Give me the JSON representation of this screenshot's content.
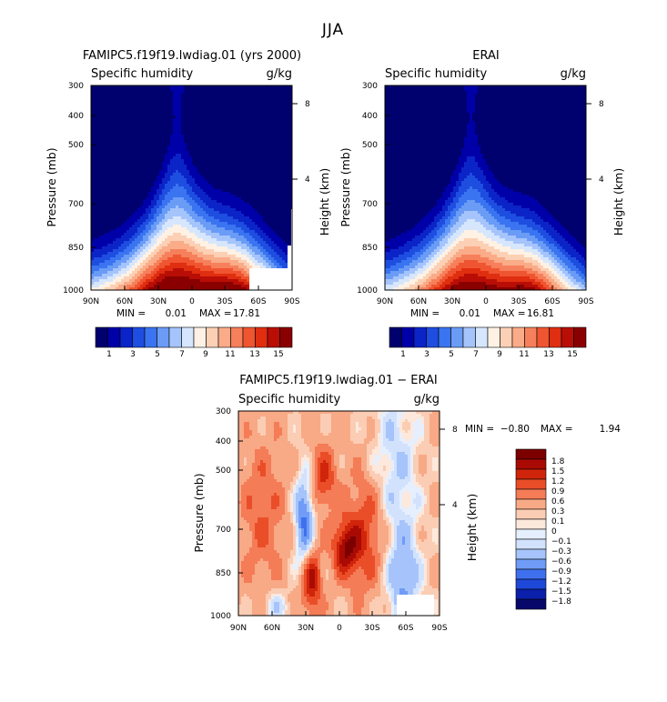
{
  "figure": {
    "suptitle": "JJA",
    "colors": {
      "seq": [
        "#00006e",
        "#0000a8",
        "#0b24c8",
        "#1e4ee0",
        "#3a74f0",
        "#6a9cf6",
        "#a5c4fb",
        "#d6e6fd",
        "#fff1e4",
        "#fcd0b4",
        "#faab88",
        "#f6805b",
        "#ef5530",
        "#df2e10",
        "#b80e06",
        "#8a0000"
      ],
      "div": [
        "#08086a",
        "#0a20aa",
        "#1e48d8",
        "#3e70ee",
        "#709cf7",
        "#a6c4fb",
        "#d2e2fd",
        "#e6effe",
        "#fde8dc",
        "#fbcdb4",
        "#f8a986",
        "#f47c57",
        "#ea4e28",
        "#d0250b",
        "#aa0a04",
        "#7c0000"
      ]
    },
    "panels": [
      {
        "id": "model",
        "title": "FAMIPC5.f19f19.lwdiag.01 (yrs 2000)",
        "left_label": "Specific humidity",
        "right_label": "g/kg",
        "ylabel": "Pressure (mb)",
        "ylabel_right": "Height (km)",
        "yticks": [
          "300",
          "400",
          "500",
          "700",
          "850",
          "1000"
        ],
        "yticks_right": [
          "8",
          "4"
        ],
        "xticks": [
          "90N",
          "60N",
          "30N",
          "0",
          "30S",
          "60S",
          "90S"
        ],
        "stats": {
          "min_label": "MIN =",
          "min": "0.01",
          "max_label": "MAX =",
          "max": "17.81"
        },
        "colorbar_labels": [
          "1",
          "3",
          "5",
          "7",
          "9",
          "11",
          "13",
          "15"
        ]
      },
      {
        "id": "obs",
        "title": "ERAI",
        "left_label": "Specific humidity",
        "right_label": "g/kg",
        "ylabel": "Pressure (mb)",
        "ylabel_right": "Height (km)",
        "yticks": [
          "300",
          "400",
          "500",
          "700",
          "850",
          "1000"
        ],
        "yticks_right": [
          "8",
          "4"
        ],
        "xticks": [
          "90N",
          "60N",
          "30N",
          "0",
          "30S",
          "60S",
          "90S"
        ],
        "stats": {
          "min_label": "MIN =",
          "min": "0.01",
          "max_label": "MAX =",
          "max": "16.81"
        },
        "colorbar_labels": [
          "1",
          "3",
          "5",
          "7",
          "9",
          "11",
          "13",
          "15"
        ]
      },
      {
        "id": "diff",
        "title": "FAMIPC5.f19f19.lwdiag.01 − ERAI",
        "left_label": "Specific humidity",
        "right_label": "g/kg",
        "ylabel": "Pressure (mb)",
        "ylabel_right": "Height (km)",
        "yticks": [
          "300",
          "400",
          "500",
          "700",
          "850",
          "1000"
        ],
        "yticks_right": [
          "8",
          "4"
        ],
        "xticks": [
          "90N",
          "60N",
          "30N",
          "0",
          "30S",
          "60S",
          "90S"
        ],
        "stats": {
          "min_label": "MIN =",
          "min": "−0.80",
          "max_label": "MAX =",
          "max": "1.94"
        },
        "colorbar_labels": [
          "1.8",
          "1.5",
          "1.2",
          "0.9",
          "0.6",
          "0.3",
          "0.1",
          "0",
          "−0.1",
          "−0.3",
          "−0.6",
          "−0.9",
          "−1.2",
          "−1.5",
          "−1.8"
        ]
      }
    ]
  },
  "chart_data": [
    {
      "type": "heatmap",
      "title": "FAMIPC5.f19f19.lwdiag.01 (yrs 2000)",
      "xlabel": "",
      "ylabel": "Pressure (mb)",
      "x": [
        "90N",
        "60N",
        "30N",
        "0",
        "30S",
        "60S",
        "90S"
      ],
      "y_pressure_mb": [
        300,
        400,
        500,
        700,
        850,
        1000
      ],
      "units": "g/kg",
      "contour_levels": [
        1,
        2,
        3,
        4,
        5,
        6,
        7,
        8,
        9,
        10,
        11,
        12,
        13,
        14,
        15
      ],
      "min": 0.01,
      "max": 17.81,
      "peak_latitude": "~10N",
      "peak_pressure_mb": 1000
    },
    {
      "type": "heatmap",
      "title": "ERAI",
      "ylabel": "Pressure (mb)",
      "x": [
        "90N",
        "60N",
        "30N",
        "0",
        "30S",
        "60S",
        "90S"
      ],
      "y_pressure_mb": [
        300,
        400,
        500,
        700,
        850,
        1000
      ],
      "units": "g/kg",
      "contour_levels": [
        1,
        2,
        3,
        4,
        5,
        6,
        7,
        8,
        9,
        10,
        11,
        12,
        13,
        14,
        15
      ],
      "min": 0.01,
      "max": 16.81,
      "peak_latitude": "~10N",
      "peak_pressure_mb": 1000
    },
    {
      "type": "heatmap",
      "title": "FAMIPC5.f19f19.lwdiag.01 − ERAI",
      "ylabel": "Pressure (mb)",
      "x": [
        "90N",
        "60N",
        "30N",
        "0",
        "30S",
        "60S",
        "90S"
      ],
      "y_pressure_mb": [
        300,
        400,
        500,
        700,
        850,
        1000
      ],
      "units": "g/kg",
      "contour_levels": [
        -1.8,
        -1.5,
        -1.2,
        -0.9,
        -0.6,
        -0.3,
        -0.1,
        0,
        0.1,
        0.3,
        0.6,
        0.9,
        1.2,
        1.5,
        1.8
      ],
      "min": -0.8,
      "max": 1.94
    }
  ]
}
